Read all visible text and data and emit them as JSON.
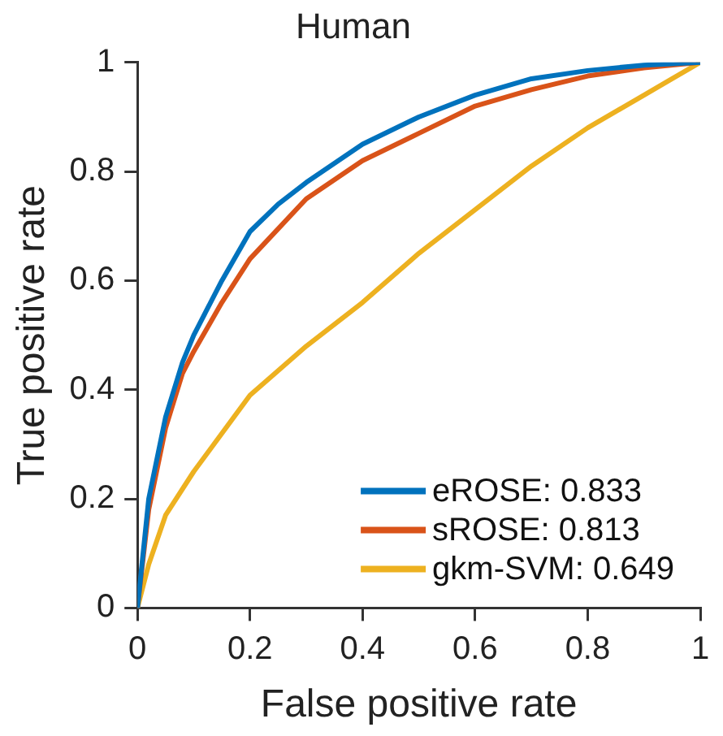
{
  "chart_data": {
    "type": "line",
    "title": "Human",
    "xlabel": "False positive rate",
    "ylabel": "True positive rate",
    "xlim": [
      0,
      1
    ],
    "ylim": [
      0,
      1
    ],
    "xticks": [
      0,
      0.2,
      0.4,
      0.6,
      0.8,
      1
    ],
    "yticks": [
      0,
      0.2,
      0.4,
      0.6,
      0.8,
      1
    ],
    "grid": false,
    "legend": "bottom right",
    "marker": "none",
    "line_style": "solid",
    "series": [
      {
        "name": "eROSE: 0.833",
        "color": "#0072bd",
        "x": [
          0,
          0.02,
          0.05,
          0.08,
          0.1,
          0.15,
          0.2,
          0.25,
          0.3,
          0.4,
          0.5,
          0.6,
          0.7,
          0.8,
          0.9,
          1
        ],
        "values": [
          0,
          0.2,
          0.35,
          0.45,
          0.5,
          0.6,
          0.69,
          0.74,
          0.78,
          0.85,
          0.9,
          0.94,
          0.97,
          0.985,
          0.995,
          1
        ]
      },
      {
        "name": "sROSE: 0.813",
        "color": "#d95319",
        "x": [
          0,
          0.02,
          0.05,
          0.08,
          0.1,
          0.15,
          0.2,
          0.3,
          0.4,
          0.5,
          0.6,
          0.7,
          0.8,
          0.9,
          1
        ],
        "values": [
          0,
          0.18,
          0.33,
          0.43,
          0.47,
          0.56,
          0.64,
          0.75,
          0.82,
          0.87,
          0.92,
          0.95,
          0.975,
          0.99,
          1
        ]
      },
      {
        "name": "gkm-SVM: 0.649",
        "color": "#edb120",
        "x": [
          0,
          0.02,
          0.05,
          0.1,
          0.2,
          0.3,
          0.4,
          0.5,
          0.6,
          0.7,
          0.8,
          0.9,
          0.95,
          1
        ],
        "values": [
          0,
          0.08,
          0.17,
          0.25,
          0.39,
          0.48,
          0.56,
          0.65,
          0.73,
          0.81,
          0.88,
          0.94,
          0.97,
          1
        ]
      }
    ]
  }
}
